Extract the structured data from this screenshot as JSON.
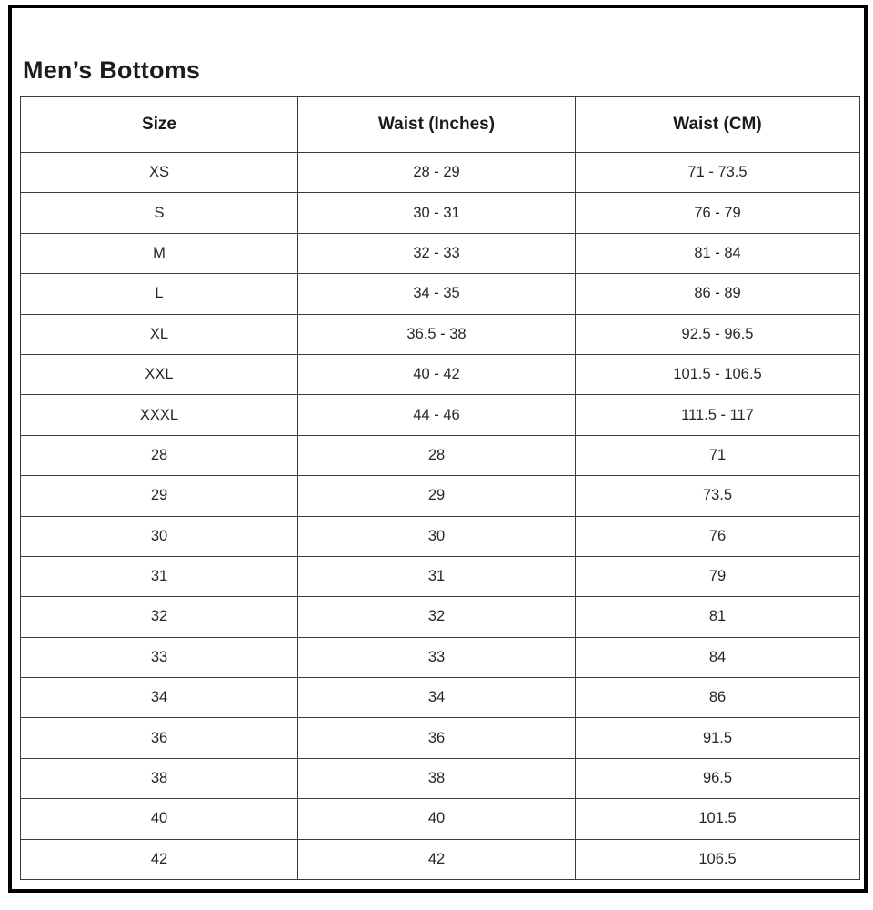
{
  "page": {
    "title": "Men’s Bottoms"
  },
  "chart_data": {
    "type": "table",
    "title": "Men’s Bottoms",
    "columns": [
      "Size",
      "Waist (Inches)",
      "Waist (CM)"
    ],
    "rows": [
      [
        "XS",
        "28 - 29",
        "71 - 73.5"
      ],
      [
        "S",
        "30 - 31",
        "76 - 79"
      ],
      [
        "M",
        "32 - 33",
        "81 - 84"
      ],
      [
        "L",
        "34 - 35",
        "86 - 89"
      ],
      [
        "XL",
        "36.5 - 38",
        "92.5 - 96.5"
      ],
      [
        "XXL",
        "40 - 42",
        "101.5 - 106.5"
      ],
      [
        "XXXL",
        "44 - 46",
        "111.5 - 117"
      ],
      [
        "28",
        "28",
        "71"
      ],
      [
        "29",
        "29",
        "73.5"
      ],
      [
        "30",
        "30",
        "76"
      ],
      [
        "31",
        "31",
        "79"
      ],
      [
        "32",
        "32",
        "81"
      ],
      [
        "33",
        "33",
        "84"
      ],
      [
        "34",
        "34",
        "86"
      ],
      [
        "36",
        "36",
        "91.5"
      ],
      [
        "38",
        "38",
        "96.5"
      ],
      [
        "40",
        "40",
        "101.5"
      ],
      [
        "42",
        "42",
        "106.5"
      ]
    ]
  },
  "colors": {
    "background": "#ffffff",
    "text": "#1f1f1f",
    "grid_border": "#3d3d3d",
    "page_frame": "#000000"
  }
}
